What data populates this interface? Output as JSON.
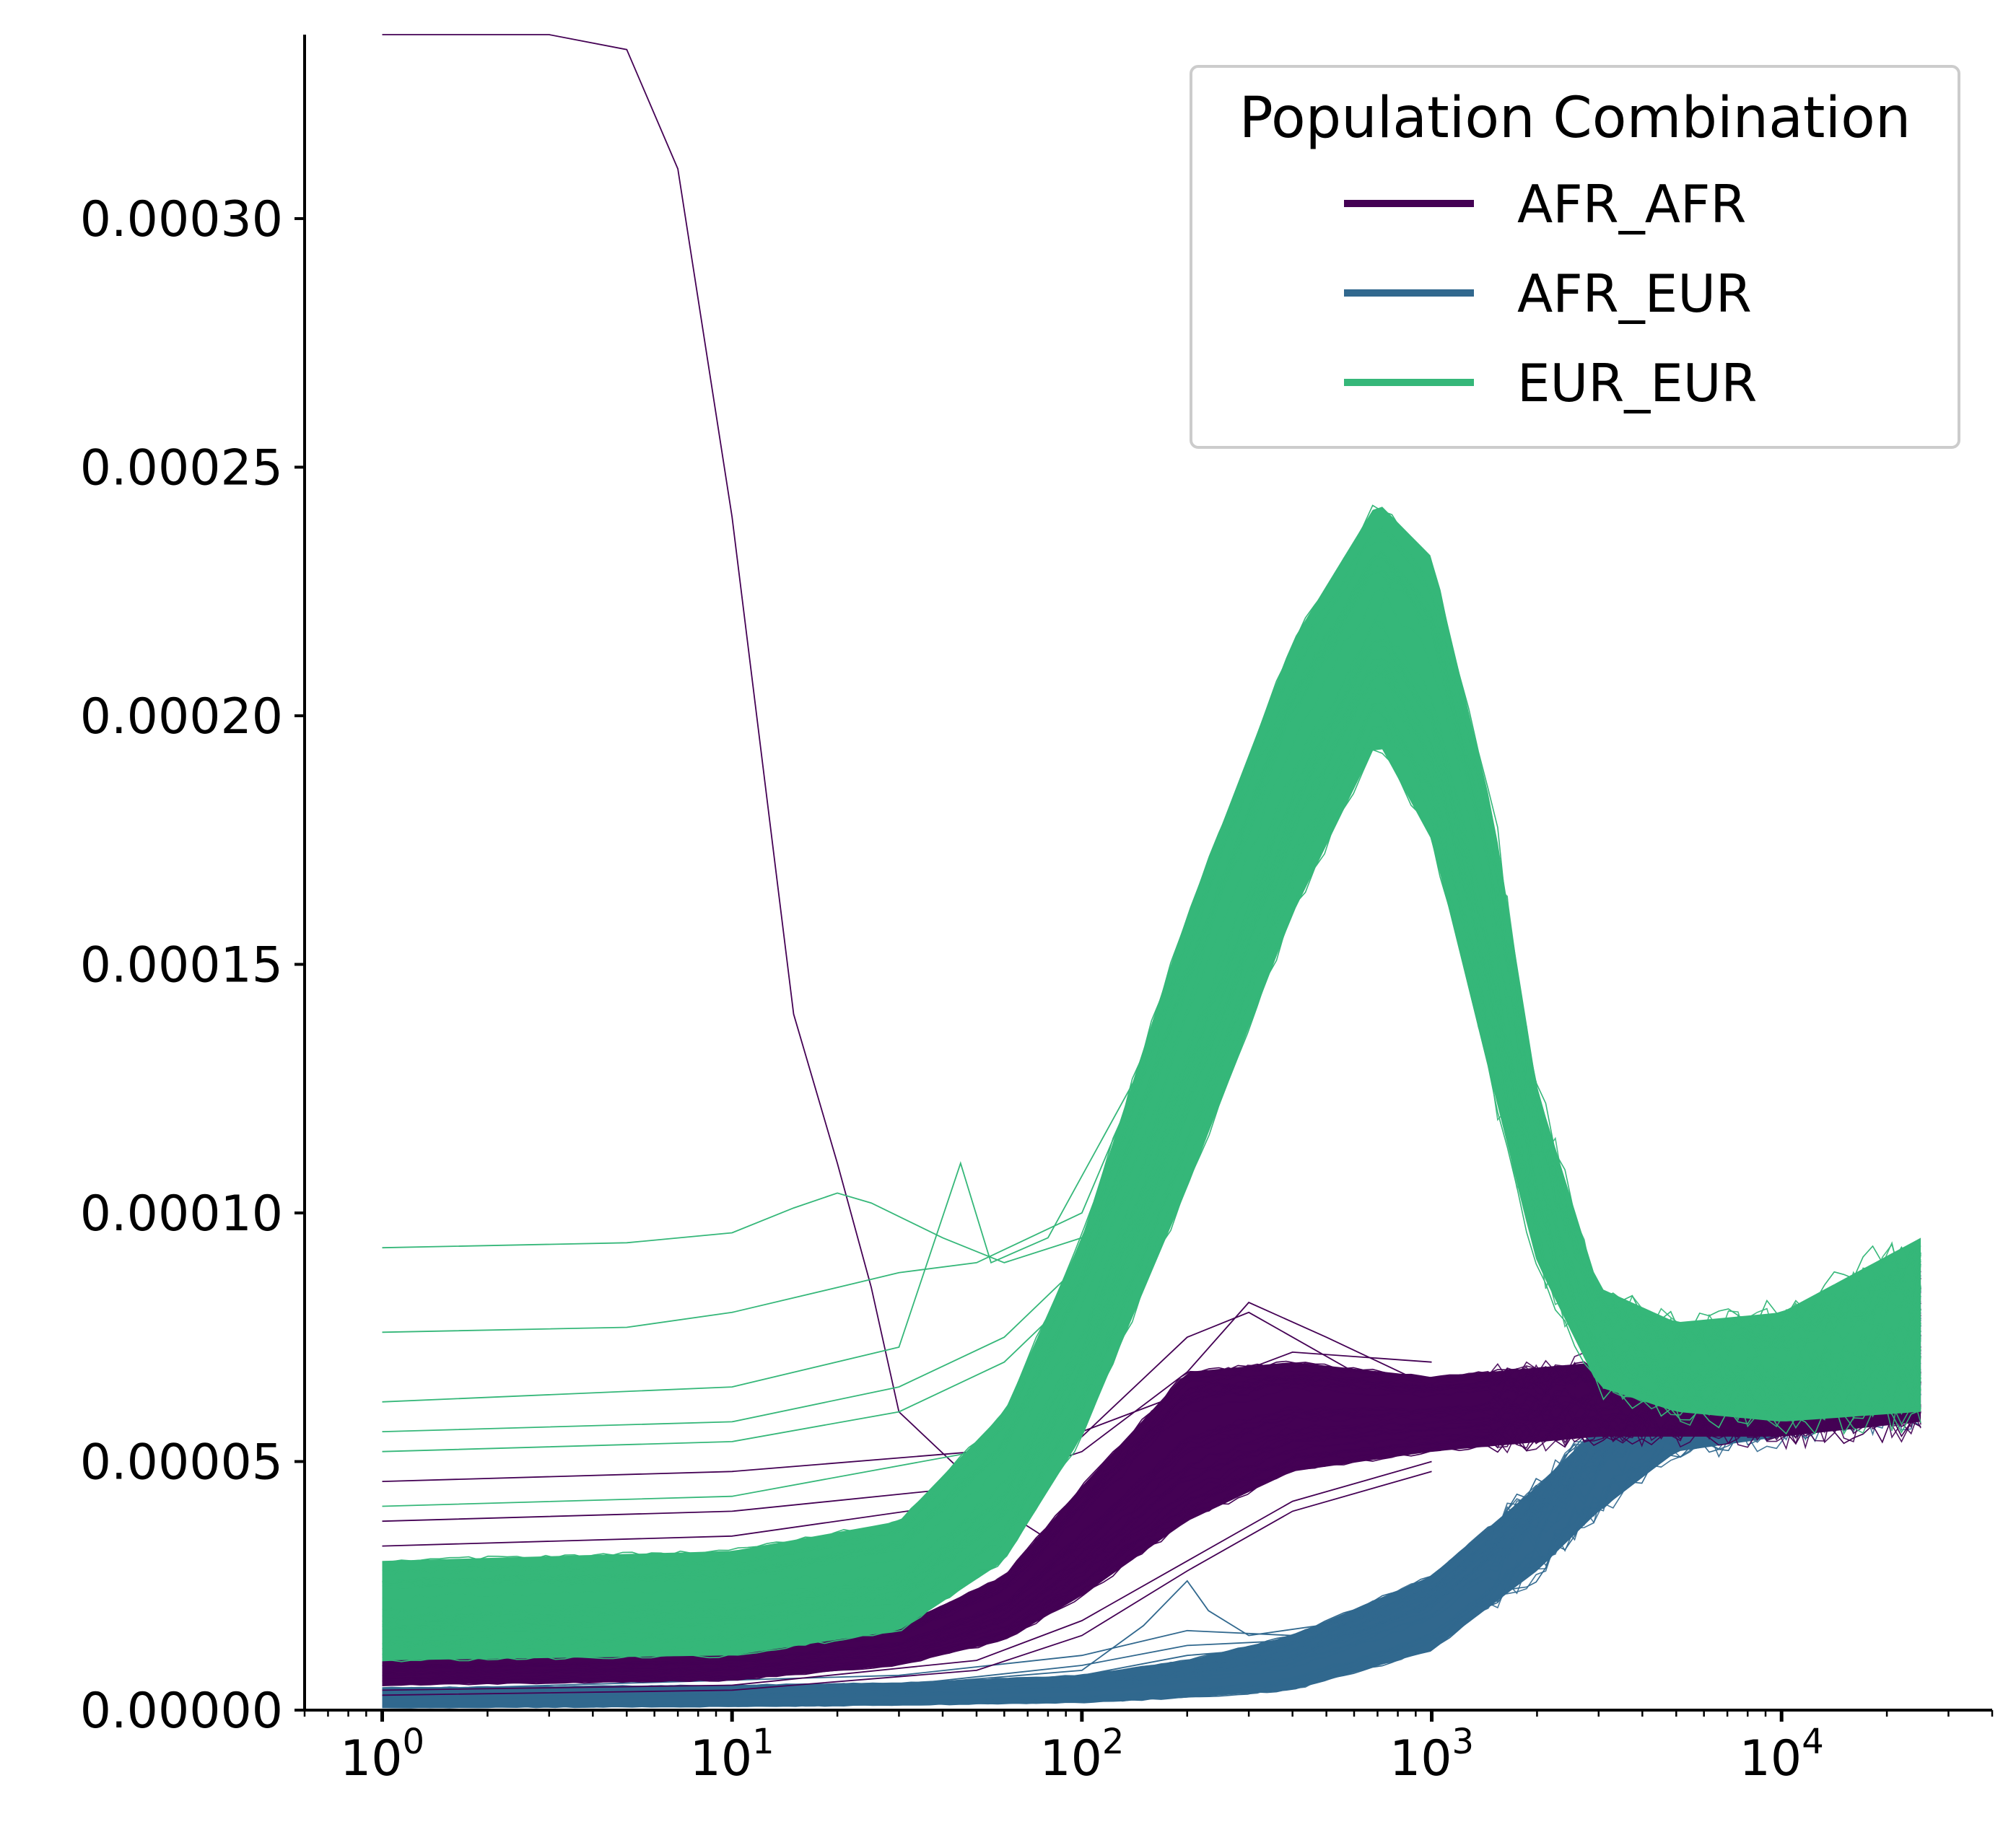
{
  "chart_data": {
    "type": "line",
    "title": "",
    "xlabel": "",
    "ylabel": "",
    "xscale": "log",
    "xlim": [
      0.6,
      40000
    ],
    "ylim": [
      0,
      0.000337
    ],
    "x_ticks": [
      {
        "value": 1,
        "base": "10",
        "exp": "0"
      },
      {
        "value": 10,
        "base": "10",
        "exp": "1"
      },
      {
        "value": 100,
        "base": "10",
        "exp": "2"
      },
      {
        "value": 1000,
        "base": "10",
        "exp": "3"
      },
      {
        "value": 10000,
        "base": "10",
        "exp": "4"
      }
    ],
    "y_ticks": [
      {
        "value": 0.0,
        "label": "0.00000"
      },
      {
        "value": 5e-05,
        "label": "0.00005"
      },
      {
        "value": 0.0001,
        "label": "0.00010"
      },
      {
        "value": 0.00015,
        "label": "0.00015"
      },
      {
        "value": 0.0002,
        "label": "0.00020"
      },
      {
        "value": 0.00025,
        "label": "0.00025"
      },
      {
        "value": 0.0003,
        "label": "0.00030"
      }
    ],
    "legend": {
      "title": "Population Combination",
      "position": "upper right",
      "entries": [
        {
          "label": "AFR_AFR",
          "color": "#440154"
        },
        {
          "label": "AFR_EUR",
          "color": "#31688e"
        },
        {
          "label": "EUR_EUR",
          "color": "#35b779"
        }
      ]
    },
    "grid": false,
    "series": [
      {
        "name": "AFR_AFR",
        "color": "#440154",
        "band_lower": [
          [
            1,
            5e-06
          ],
          [
            10,
            6e-06
          ],
          [
            30,
            9e-06
          ],
          [
            60,
            1.4e-05
          ],
          [
            100,
            2.3e-05
          ],
          [
            200,
            3.8e-05
          ],
          [
            400,
            4.8e-05
          ],
          [
            1000,
            5.2e-05
          ],
          [
            3000,
            5.5e-05
          ],
          [
            10000,
            5.5e-05
          ],
          [
            25000,
            5.8e-05
          ]
        ],
        "band_upper": [
          [
            1,
            1.2e-05
          ],
          [
            10,
            1.3e-05
          ],
          [
            30,
            1.7e-05
          ],
          [
            60,
            2.7e-05
          ],
          [
            100,
            4.5e-05
          ],
          [
            200,
            6.8e-05
          ],
          [
            400,
            7e-05
          ],
          [
            1000,
            6.7e-05
          ],
          [
            3000,
            7e-05
          ],
          [
            10000,
            7.4e-05
          ],
          [
            25000,
            9e-05
          ]
        ],
        "outliers": [
          [
            [
              1,
              0.000337
            ],
            [
              3,
              0.000337
            ],
            [
              5,
              0.000334
            ],
            [
              7,
              0.00031
            ],
            [
              10,
              0.00024
            ],
            [
              15,
              0.00014
            ],
            [
              20,
              0.00011
            ],
            [
              25,
              8.5e-05
            ],
            [
              30,
              6e-05
            ],
            [
              60,
              4e-05
            ],
            [
              100,
              3e-05
            ],
            [
              200,
              4e-05
            ],
            [
              400,
              5.5e-05
            ],
            [
              1000,
              6e-05
            ]
          ],
          [
            [
              1,
              4.6e-05
            ],
            [
              10,
              4.8e-05
            ],
            [
              50,
              5.2e-05
            ],
            [
              100,
              5.6e-05
            ],
            [
              200,
              6.4e-05
            ],
            [
              400,
              7.2e-05
            ],
            [
              1000,
              7e-05
            ]
          ],
          [
            [
              1,
              3.8e-05
            ],
            [
              10,
              4e-05
            ],
            [
              50,
              4.5e-05
            ],
            [
              100,
              5.2e-05
            ],
            [
              200,
              6.8e-05
            ],
            [
              300,
              8.2e-05
            ],
            [
              500,
              7.5e-05
            ],
            [
              1000,
              6.5e-05
            ]
          ],
          [
            [
              1,
              3.3e-05
            ],
            [
              10,
              3.5e-05
            ],
            [
              50,
              4.2e-05
            ],
            [
              100,
              5.5e-05
            ],
            [
              200,
              7.5e-05
            ],
            [
              300,
              8e-05
            ],
            [
              600,
              6.8e-05
            ]
          ],
          [
            [
              1,
              4e-06
            ],
            [
              10,
              5e-06
            ],
            [
              50,
              1e-05
            ],
            [
              100,
              1.8e-05
            ],
            [
              200,
              3e-05
            ],
            [
              400,
              4.2e-05
            ],
            [
              1000,
              5e-05
            ]
          ],
          [
            [
              1,
              3e-06
            ],
            [
              10,
              4e-06
            ],
            [
              50,
              8e-06
            ],
            [
              100,
              1.5e-05
            ],
            [
              200,
              2.8e-05
            ],
            [
              400,
              4e-05
            ],
            [
              1000,
              4.8e-05
            ]
          ]
        ]
      },
      {
        "name": "AFR_EUR",
        "color": "#31688e",
        "band_lower": [
          [
            1,
            5e-07
          ],
          [
            10,
            7e-07
          ],
          [
            30,
            1e-06
          ],
          [
            100,
            1.5e-06
          ],
          [
            200,
            2.5e-06
          ],
          [
            400,
            4e-06
          ],
          [
            1000,
            1.2e-05
          ],
          [
            2000,
            2.8e-05
          ],
          [
            3000,
            4e-05
          ],
          [
            5000,
            5.2e-05
          ],
          [
            10000,
            5.5e-05
          ],
          [
            25000,
            6e-05
          ]
        ],
        "band_upper": [
          [
            1,
            4.5e-06
          ],
          [
            10,
            5e-06
          ],
          [
            30,
            5.5e-06
          ],
          [
            100,
            7e-06
          ],
          [
            200,
            1e-05
          ],
          [
            400,
            1.5e-05
          ],
          [
            1000,
            2.7e-05
          ],
          [
            2000,
            4.5e-05
          ],
          [
            3000,
            5.7e-05
          ],
          [
            5000,
            6.6e-05
          ],
          [
            10000,
            7.2e-05
          ],
          [
            25000,
            8.5e-05
          ]
        ],
        "outliers": [
          [
            [
              1,
              4e-06
            ],
            [
              30,
              5e-06
            ],
            [
              100,
              8e-06
            ],
            [
              150,
              1.7e-05
            ],
            [
              200,
              2.6e-05
            ],
            [
              230,
              2e-05
            ],
            [
              300,
              1.5e-05
            ],
            [
              600,
              1.8e-05
            ]
          ],
          [
            [
              1,
              3e-06
            ],
            [
              30,
              5e-06
            ],
            [
              100,
              9e-06
            ],
            [
              200,
              1.3e-05
            ],
            [
              400,
              1.4e-05
            ],
            [
              1000,
              2.5e-05
            ]
          ],
          [
            [
              1,
              4e-06
            ],
            [
              30,
              7e-06
            ],
            [
              100,
              1.1e-05
            ],
            [
              200,
              1.6e-05
            ],
            [
              400,
              1.5e-05
            ]
          ],
          [
            [
              1,
              3e-06
            ],
            [
              50,
              4e-06
            ],
            [
              100,
              7e-06
            ],
            [
              200,
              1.1e-05
            ],
            [
              300,
              1.2e-05
            ]
          ]
        ]
      },
      {
        "name": "EUR_EUR",
        "color": "#35b779",
        "band_lower": [
          [
            1,
            1e-05
          ],
          [
            10,
            1.1e-05
          ],
          [
            30,
            1.6e-05
          ],
          [
            60,
            3e-05
          ],
          [
            100,
            5.5e-05
          ],
          [
            200,
            0.000105
          ],
          [
            400,
            0.00016
          ],
          [
            700,
            0.000195
          ],
          [
            1000,
            0.000175
          ],
          [
            1500,
            0.000125
          ],
          [
            2000,
            9e-05
          ],
          [
            3000,
            6.5e-05
          ],
          [
            5000,
            6e-05
          ],
          [
            10000,
            5.8e-05
          ],
          [
            25000,
            6e-05
          ]
        ],
        "band_upper": [
          [
            1,
            3e-05
          ],
          [
            10,
            3.2e-05
          ],
          [
            30,
            3.8e-05
          ],
          [
            60,
            6e-05
          ],
          [
            100,
            9.5e-05
          ],
          [
            200,
            0.00016
          ],
          [
            400,
            0.000215
          ],
          [
            700,
            0.000243
          ],
          [
            1000,
            0.000232
          ],
          [
            1500,
            0.00018
          ],
          [
            2000,
            0.000125
          ],
          [
            3000,
            8.5e-05
          ],
          [
            5000,
            7.8e-05
          ],
          [
            10000,
            8e-05
          ],
          [
            25000,
            9.5e-05
          ]
        ],
        "outliers": [
          [
            [
              1,
              9.3e-05
            ],
            [
              5,
              9.4e-05
            ],
            [
              10,
              9.6e-05
            ],
            [
              15,
              0.000101
            ],
            [
              20,
              0.000104
            ],
            [
              25,
              0.000102
            ],
            [
              40,
              9.5e-05
            ],
            [
              60,
              9e-05
            ],
            [
              100,
              9.5e-05
            ],
            [
              200,
              0.00014
            ]
          ],
          [
            [
              1,
              7.6e-05
            ],
            [
              5,
              7.7e-05
            ],
            [
              10,
              8e-05
            ],
            [
              20,
              8.5e-05
            ],
            [
              30,
              8.8e-05
            ],
            [
              50,
              9e-05
            ],
            [
              100,
              0.0001
            ],
            [
              200,
              0.00015
            ]
          ],
          [
            [
              1,
              6.2e-05
            ],
            [
              10,
              6.5e-05
            ],
            [
              30,
              7.3e-05
            ],
            [
              45,
              0.00011
            ],
            [
              55,
              9e-05
            ],
            [
              80,
              9.5e-05
            ],
            [
              150,
              0.00013
            ],
            [
              300,
              0.00019
            ]
          ],
          [
            [
              1,
              5.6e-05
            ],
            [
              10,
              5.8e-05
            ],
            [
              30,
              6.5e-05
            ],
            [
              60,
              7.5e-05
            ],
            [
              100,
              9e-05
            ],
            [
              200,
              0.00013
            ],
            [
              400,
              0.00018
            ]
          ],
          [
            [
              1,
              5.2e-05
            ],
            [
              10,
              5.4e-05
            ],
            [
              30,
              6e-05
            ],
            [
              60,
              7e-05
            ],
            [
              100,
              8.5e-05
            ],
            [
              150,
              0.00011
            ],
            [
              250,
              0.000165
            ],
            [
              300,
              0.00019
            ]
          ],
          [
            [
              1,
              4.1e-05
            ],
            [
              10,
              4.3e-05
            ],
            [
              50,
              5.2e-05
            ],
            [
              100,
              7.5e-05
            ],
            [
              200,
              0.00012
            ],
            [
              400,
              0.00018
            ],
            [
              800,
              0.00023
            ]
          ]
        ]
      }
    ]
  }
}
